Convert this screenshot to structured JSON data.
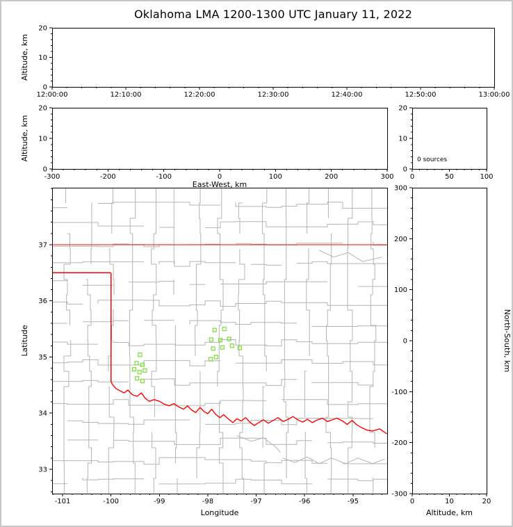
{
  "title": "Oklahoma LMA 1200-1300 UTC January 11, 2022",
  "colors": {
    "state_border": "#ff0000",
    "county_line": "#b4b4b4",
    "river_line": "#b4b4b4",
    "source_marker": "#77dd33",
    "axis_line": "#000000",
    "background": "#ffffff",
    "outer_border": "#c8c8c8"
  },
  "chart_data": [
    {
      "id": "time_height",
      "type": "scatter",
      "xlabel": "",
      "ylabel": "Altitude, km",
      "x_tick_labels": [
        "12:00:00",
        "12:10:00",
        "12:20:00",
        "12:30:00",
        "12:40:00",
        "12:50:00",
        "13:00:00"
      ],
      "xlim": [
        0,
        3600
      ],
      "xticks": [
        0,
        600,
        1200,
        1800,
        2400,
        3000,
        3600
      ],
      "ylim": [
        0,
        20
      ],
      "yticks": [
        0,
        10,
        20
      ],
      "points": []
    },
    {
      "id": "ew_height",
      "type": "scatter",
      "xlabel": "East-West, km",
      "ylabel": "Altitude, km",
      "xlim": [
        -300,
        300
      ],
      "xticks": [
        -300,
        -200,
        -100,
        0,
        100,
        200,
        300
      ],
      "ylim": [
        0,
        20
      ],
      "yticks": [
        0,
        10,
        20
      ],
      "points": []
    },
    {
      "id": "altitude_histogram",
      "type": "scatter",
      "annotation": "0 sources",
      "xlim": [
        0,
        100
      ],
      "xticks": [
        0,
        50,
        100
      ],
      "ylim": [
        0,
        20
      ],
      "yticks": [
        0,
        10,
        20
      ],
      "points": []
    },
    {
      "id": "plan_view",
      "type": "scatter",
      "xlabel": "Longitude",
      "ylabel": "Latitude",
      "xlim": [
        -101.215,
        -94.295
      ],
      "xticks": [
        -101,
        -100,
        -99,
        -98,
        -97,
        -96,
        -95
      ],
      "ylim": [
        32.566,
        38.015
      ],
      "yticks": [
        33,
        34,
        35,
        36,
        37
      ],
      "sources": [
        [
          -99.4,
          35.04
        ],
        [
          -99.47,
          34.89
        ],
        [
          -99.35,
          34.86
        ],
        [
          -99.52,
          34.78
        ],
        [
          -99.41,
          34.73
        ],
        [
          -99.3,
          34.76
        ],
        [
          -99.46,
          34.62
        ],
        [
          -99.35,
          34.57
        ],
        [
          -97.86,
          35.48
        ],
        [
          -97.66,
          35.5
        ],
        [
          -97.93,
          35.31
        ],
        [
          -97.74,
          35.3
        ],
        [
          -97.56,
          35.32
        ],
        [
          -97.89,
          35.15
        ],
        [
          -97.7,
          35.17
        ],
        [
          -97.5,
          35.2
        ],
        [
          -97.34,
          35.16
        ],
        [
          -97.83,
          35.0
        ],
        [
          -97.94,
          34.96
        ]
      ],
      "state_border": {
        "north_lat": 37.0,
        "panhandle_lat": 36.5,
        "panhandle_lon_end": -100.0,
        "west_lon": -100.0,
        "west_lat_range": [
          36.5,
          34.56
        ],
        "red_river": [
          [
            -100.0,
            34.56
          ],
          [
            -99.96,
            34.5
          ],
          [
            -99.9,
            34.44
          ],
          [
            -99.82,
            34.4
          ],
          [
            -99.73,
            34.36
          ],
          [
            -99.65,
            34.41
          ],
          [
            -99.56,
            34.33
          ],
          [
            -99.46,
            34.3
          ],
          [
            -99.37,
            34.36
          ],
          [
            -99.29,
            34.26
          ],
          [
            -99.21,
            34.21
          ],
          [
            -99.11,
            34.24
          ],
          [
            -99.0,
            34.21
          ],
          [
            -98.9,
            34.16
          ],
          [
            -98.8,
            34.13
          ],
          [
            -98.7,
            34.17
          ],
          [
            -98.6,
            34.11
          ],
          [
            -98.5,
            34.07
          ],
          [
            -98.42,
            34.13
          ],
          [
            -98.34,
            34.06
          ],
          [
            -98.25,
            34.01
          ],
          [
            -98.16,
            34.1
          ],
          [
            -98.08,
            34.03
          ],
          [
            -98.0,
            33.99
          ],
          [
            -97.92,
            34.07
          ],
          [
            -97.84,
            33.98
          ],
          [
            -97.75,
            33.92
          ],
          [
            -97.67,
            33.97
          ],
          [
            -97.58,
            33.9
          ],
          [
            -97.48,
            33.83
          ],
          [
            -97.4,
            33.9
          ],
          [
            -97.31,
            33.86
          ],
          [
            -97.22,
            33.92
          ],
          [
            -97.12,
            33.83
          ],
          [
            -97.04,
            33.78
          ],
          [
            -96.95,
            33.83
          ],
          [
            -96.85,
            33.88
          ],
          [
            -96.75,
            33.82
          ],
          [
            -96.65,
            33.87
          ],
          [
            -96.55,
            33.92
          ],
          [
            -96.44,
            33.85
          ],
          [
            -96.34,
            33.89
          ],
          [
            -96.24,
            33.94
          ],
          [
            -96.14,
            33.88
          ],
          [
            -96.04,
            33.84
          ],
          [
            -95.94,
            33.89
          ],
          [
            -95.84,
            33.83
          ],
          [
            -95.74,
            33.88
          ],
          [
            -95.63,
            33.91
          ],
          [
            -95.53,
            33.85
          ],
          [
            -95.43,
            33.88
          ],
          [
            -95.33,
            33.91
          ],
          [
            -95.22,
            33.86
          ],
          [
            -95.12,
            33.8
          ],
          [
            -95.02,
            33.87
          ],
          [
            -94.92,
            33.79
          ],
          [
            -94.82,
            33.74
          ],
          [
            -94.72,
            33.7
          ],
          [
            -94.6,
            33.68
          ],
          [
            -94.45,
            33.72
          ],
          [
            -94.3,
            33.63
          ]
        ]
      },
      "county_grid": {
        "lon_lines": [
          -100.9,
          -100.45,
          -100.0,
          -99.55,
          -99.1,
          -98.65,
          -98.2,
          -97.75,
          -97.3,
          -96.85,
          -96.4,
          -95.95,
          -95.5,
          -95.05,
          -94.6
        ],
        "lat_lines": [
          32.8,
          33.15,
          33.5,
          33.85,
          34.2,
          34.55,
          34.9,
          35.25,
          35.6,
          35.95,
          36.3,
          36.65,
          37.0,
          37.35,
          37.7
        ]
      },
      "rivers": [
        [
          [
            -96.45,
            33.2
          ],
          [
            -96.2,
            33.12
          ],
          [
            -95.95,
            33.22
          ],
          [
            -95.7,
            33.1
          ],
          [
            -95.45,
            33.2
          ],
          [
            -95.15,
            33.1
          ],
          [
            -94.9,
            33.2
          ],
          [
            -94.6,
            33.1
          ],
          [
            -94.35,
            33.18
          ]
        ],
        [
          [
            -95.7,
            36.9
          ],
          [
            -95.4,
            36.78
          ],
          [
            -95.1,
            36.86
          ],
          [
            -94.8,
            36.7
          ],
          [
            -94.4,
            36.78
          ]
        ],
        [
          [
            -97.4,
            33.6
          ],
          [
            -97.1,
            33.5
          ],
          [
            -96.85,
            33.56
          ],
          [
            -96.6,
            33.4
          ],
          [
            -96.5,
            33.3
          ]
        ]
      ]
    },
    {
      "id": "ns_height",
      "type": "scatter",
      "xlabel": "Altitude, km",
      "ylabel_right": "North-South, km",
      "xlim": [
        0,
        20
      ],
      "xticks": [
        0,
        10,
        20
      ],
      "ylim": [
        -300,
        300
      ],
      "yticks": [
        -300,
        -200,
        -100,
        0,
        100,
        200,
        300
      ],
      "points": []
    }
  ]
}
